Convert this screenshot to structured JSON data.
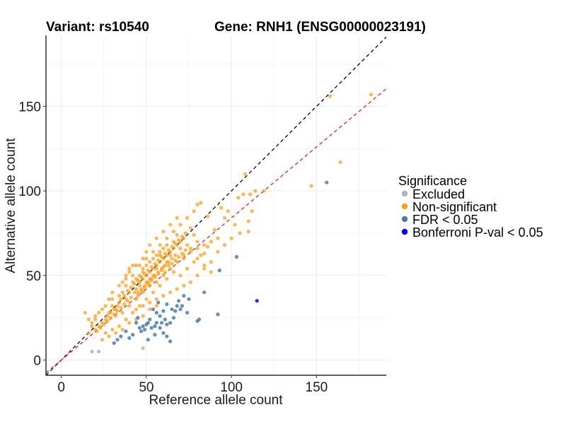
{
  "chart_data": {
    "type": "scatter",
    "title_variant": "Variant: rs10540",
    "title_gene": "Gene: RNH1 (ENSG00000023191)",
    "xlabel": "Reference allele count",
    "ylabel": "Alternative allele count",
    "xlim": [
      -9,
      191
    ],
    "ylim": [
      -9,
      192
    ],
    "xticks": [
      0,
      50,
      100,
      150
    ],
    "yticks": [
      0,
      50,
      100,
      150
    ],
    "grid": true,
    "legend": {
      "title": "Significance",
      "position": "right"
    },
    "reference_lines": [
      {
        "name": "y = x",
        "slope": 1,
        "intercept": 0,
        "color": "#000000",
        "style": "dashed"
      },
      {
        "name": "fit",
        "slope": 0.84,
        "intercept": 0,
        "color": "#e8211b",
        "style": "dashed"
      }
    ],
    "series": [
      {
        "name": "Excluded",
        "color": "#b3b3b3",
        "points": [
          [
            18,
            5
          ],
          [
            22,
            5
          ],
          [
            48,
            7
          ]
        ]
      },
      {
        "name": "Non-significant",
        "color": "#ff9e1b",
        "points": [
          [
            182,
            157
          ],
          [
            158,
            156
          ],
          [
            164,
            117
          ],
          [
            147,
            103
          ],
          [
            119,
            100
          ],
          [
            114,
            100
          ],
          [
            111,
            98
          ],
          [
            107,
            98
          ],
          [
            108,
            110
          ],
          [
            104,
            96
          ],
          [
            112,
            88
          ],
          [
            110,
            82
          ],
          [
            110,
            76
          ],
          [
            105,
            75
          ],
          [
            96,
            84
          ],
          [
            90,
            77
          ],
          [
            92,
            72
          ],
          [
            80,
            92
          ],
          [
            82,
            93
          ],
          [
            86,
            85
          ],
          [
            88,
            70
          ],
          [
            86,
            67
          ],
          [
            84,
            63
          ],
          [
            80,
            70
          ],
          [
            78,
            74
          ],
          [
            76,
            78
          ],
          [
            74,
            68
          ],
          [
            72,
            60
          ],
          [
            70,
            66
          ],
          [
            68,
            74
          ],
          [
            66,
            70
          ],
          [
            64,
            62
          ],
          [
            62,
            58
          ],
          [
            60,
            55
          ],
          [
            58,
            62
          ],
          [
            56,
            54
          ],
          [
            54,
            50
          ],
          [
            52,
            48
          ],
          [
            50,
            46
          ],
          [
            48,
            52
          ],
          [
            46,
            44
          ],
          [
            44,
            42
          ],
          [
            42,
            46
          ],
          [
            40,
            40
          ],
          [
            38,
            36
          ],
          [
            36,
            40
          ],
          [
            34,
            34
          ],
          [
            32,
            30
          ],
          [
            30,
            32
          ],
          [
            28,
            28
          ],
          [
            26,
            24
          ],
          [
            24,
            22
          ],
          [
            22,
            20
          ],
          [
            20,
            18
          ],
          [
            18,
            22
          ],
          [
            16,
            24
          ],
          [
            14,
            28
          ],
          [
            20,
            26
          ],
          [
            24,
            30
          ],
          [
            28,
            36
          ],
          [
            30,
            40
          ],
          [
            34,
            44
          ],
          [
            38,
            48
          ],
          [
            40,
            52
          ],
          [
            44,
            56
          ],
          [
            48,
            60
          ],
          [
            50,
            64
          ],
          [
            52,
            68
          ],
          [
            56,
            72
          ],
          [
            60,
            76
          ],
          [
            64,
            80
          ],
          [
            68,
            84
          ],
          [
            72,
            72
          ],
          [
            76,
            66
          ],
          [
            80,
            60
          ],
          [
            84,
            56
          ],
          [
            88,
            52
          ],
          [
            62,
            48
          ],
          [
            66,
            52
          ],
          [
            70,
            50
          ],
          [
            74,
            54
          ],
          [
            78,
            58
          ],
          [
            82,
            62
          ],
          [
            58,
            44
          ],
          [
            54,
            40
          ],
          [
            50,
            36
          ],
          [
            46,
            32
          ],
          [
            42,
            28
          ],
          [
            38,
            24
          ],
          [
            34,
            20
          ],
          [
            30,
            18
          ],
          [
            26,
            16
          ],
          [
            32,
            26
          ],
          [
            36,
            28
          ],
          [
            40,
            32
          ],
          [
            44,
            36
          ],
          [
            48,
            40
          ],
          [
            52,
            44
          ],
          [
            56,
            46
          ],
          [
            60,
            50
          ],
          [
            64,
            54
          ],
          [
            68,
            58
          ],
          [
            72,
            62
          ],
          [
            76,
            64
          ],
          [
            80,
            66
          ],
          [
            84,
            68
          ],
          [
            45,
            38
          ],
          [
            47,
            41
          ],
          [
            49,
            43
          ],
          [
            51,
            45
          ],
          [
            53,
            47
          ],
          [
            55,
            49
          ],
          [
            57,
            51
          ],
          [
            59,
            53
          ],
          [
            61,
            52
          ],
          [
            63,
            56
          ],
          [
            65,
            57
          ],
          [
            67,
            59
          ],
          [
            69,
            61
          ],
          [
            71,
            63
          ],
          [
            73,
            65
          ],
          [
            43,
            40
          ],
          [
            41,
            37
          ],
          [
            39,
            35
          ],
          [
            37,
            33
          ],
          [
            35,
            31
          ],
          [
            33,
            29
          ],
          [
            31,
            27
          ],
          [
            29,
            25
          ],
          [
            27,
            23
          ],
          [
            25,
            21
          ],
          [
            23,
            19
          ],
          [
            21,
            17
          ],
          [
            46,
            50
          ],
          [
            48,
            54
          ],
          [
            50,
            56
          ],
          [
            52,
            58
          ],
          [
            54,
            60
          ],
          [
            56,
            62
          ],
          [
            58,
            64
          ],
          [
            60,
            66
          ],
          [
            62,
            68
          ],
          [
            36,
            46
          ],
          [
            38,
            50
          ],
          [
            40,
            54
          ],
          [
            42,
            56
          ],
          [
            44,
            48
          ],
          [
            46,
            46
          ],
          [
            48,
            48
          ],
          [
            50,
            50
          ],
          [
            52,
            52
          ],
          [
            54,
            54
          ],
          [
            56,
            56
          ],
          [
            58,
            58
          ],
          [
            60,
            60
          ],
          [
            62,
            62
          ],
          [
            64,
            64
          ],
          [
            66,
            66
          ],
          [
            68,
            68
          ],
          [
            70,
            70
          ],
          [
            44,
            30
          ],
          [
            48,
            32
          ],
          [
            52,
            34
          ],
          [
            56,
            36
          ],
          [
            60,
            38
          ],
          [
            64,
            40
          ],
          [
            68,
            42
          ],
          [
            72,
            44
          ],
          [
            76,
            46
          ],
          [
            80,
            50
          ],
          [
            84,
            54
          ],
          [
            88,
            58
          ],
          [
            92,
            64
          ],
          [
            96,
            68
          ],
          [
            100,
            72
          ],
          [
            102,
            80
          ],
          [
            98,
            88
          ],
          [
            94,
            90
          ],
          [
            78,
            88
          ],
          [
            74,
            84
          ],
          [
            70,
            80
          ],
          [
            66,
            76
          ],
          [
            62,
            72
          ],
          [
            58,
            68
          ],
          [
            54,
            64
          ],
          [
            50,
            60
          ],
          [
            46,
            56
          ],
          [
            42,
            50
          ],
          [
            38,
            44
          ],
          [
            34,
            38
          ],
          [
            30,
            36
          ],
          [
            26,
            32
          ],
          [
            22,
            28
          ],
          [
            20,
            24
          ],
          [
            18,
            20
          ],
          [
            16,
            16
          ],
          [
            24,
            12
          ],
          [
            28,
            14
          ],
          [
            32,
            16
          ],
          [
            36,
            18
          ],
          [
            40,
            22
          ],
          [
            44,
            24
          ],
          [
            48,
            26
          ],
          [
            52,
            30
          ],
          [
            56,
            32
          ],
          [
            39,
            41
          ],
          [
            41,
            43
          ],
          [
            43,
            45
          ],
          [
            45,
            47
          ],
          [
            47,
            49
          ],
          [
            49,
            51
          ],
          [
            51,
            53
          ],
          [
            53,
            55
          ],
          [
            55,
            57
          ],
          [
            57,
            59
          ],
          [
            59,
            61
          ],
          [
            61,
            63
          ],
          [
            63,
            65
          ],
          [
            65,
            67
          ],
          [
            67,
            69
          ],
          [
            69,
            71
          ],
          [
            71,
            73
          ],
          [
            73,
            75
          ],
          [
            37,
            38
          ],
          [
            35,
            36
          ],
          [
            33,
            32
          ],
          [
            31,
            30
          ],
          [
            29,
            28
          ],
          [
            27,
            26
          ],
          [
            45,
            40
          ],
          [
            47,
            42
          ],
          [
            49,
            44
          ],
          [
            51,
            46
          ],
          [
            53,
            48
          ],
          [
            55,
            50
          ],
          [
            57,
            52
          ],
          [
            59,
            54
          ],
          [
            61,
            56
          ],
          [
            63,
            58
          ],
          [
            65,
            60
          ],
          [
            67,
            62
          ]
        ]
      },
      {
        "name": "FDR < 0.05",
        "color": "#4a7aab",
        "points": [
          [
            156,
            105
          ],
          [
            103,
            61
          ],
          [
            93,
            53
          ],
          [
            84,
            40
          ],
          [
            92,
            27
          ],
          [
            81,
            24
          ],
          [
            80,
            23
          ],
          [
            75,
            36
          ],
          [
            72,
            38
          ],
          [
            71,
            32
          ],
          [
            70,
            30
          ],
          [
            74,
            28
          ],
          [
            68,
            32
          ],
          [
            67,
            29
          ],
          [
            66,
            25
          ],
          [
            64,
            22
          ],
          [
            62,
            21
          ],
          [
            61,
            24
          ],
          [
            59,
            22
          ],
          [
            58,
            19
          ],
          [
            56,
            22
          ],
          [
            55,
            20
          ],
          [
            53,
            19
          ],
          [
            52,
            24
          ],
          [
            51,
            22
          ],
          [
            50,
            21
          ],
          [
            49,
            18
          ],
          [
            48,
            20
          ],
          [
            47,
            17
          ],
          [
            46,
            19
          ],
          [
            45,
            25
          ],
          [
            44,
            22
          ],
          [
            60,
            16
          ],
          [
            62,
            14
          ],
          [
            55,
            15
          ],
          [
            51,
            12
          ],
          [
            64,
            11
          ],
          [
            65,
            30
          ],
          [
            62,
            33
          ],
          [
            60,
            29
          ],
          [
            58,
            26
          ],
          [
            56,
            28
          ],
          [
            54,
            30
          ],
          [
            57,
            34
          ],
          [
            69,
            35
          ],
          [
            35,
            14
          ],
          [
            33,
            12
          ],
          [
            31,
            10
          ],
          [
            40,
            13
          ],
          [
            42,
            15
          ],
          [
            38,
            17
          ]
        ]
      },
      {
        "name": "Bonferroni P-val < 0.05",
        "color": "#0000ff",
        "points": [
          [
            115,
            35
          ]
        ]
      }
    ]
  }
}
